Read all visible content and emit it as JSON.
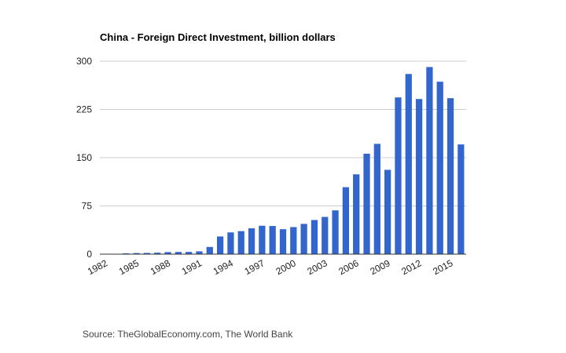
{
  "chart_data": {
    "type": "bar",
    "title": "China - Foreign Direct Investment, billion dollars",
    "xlabel": "",
    "ylabel": "",
    "x": [
      1982,
      1983,
      1984,
      1985,
      1986,
      1987,
      1988,
      1989,
      1990,
      1991,
      1992,
      1993,
      1994,
      1995,
      1996,
      1997,
      1998,
      1999,
      2000,
      2001,
      2002,
      2003,
      2004,
      2005,
      2006,
      2007,
      2008,
      2009,
      2010,
      2011,
      2012,
      2013,
      2014,
      2015,
      2016
    ],
    "values": [
      0.4,
      0.6,
      1.3,
      1.7,
      1.9,
      2.3,
      3.2,
      3.4,
      3.5,
      4.4,
      11.2,
      27.5,
      33.8,
      35.8,
      40.2,
      44.2,
      43.8,
      38.8,
      42.1,
      47.1,
      53.1,
      57.9,
      68.1,
      104.1,
      124.1,
      156.2,
      171.5,
      131.1,
      243.7,
      280.1,
      241.2,
      290.9,
      268.1,
      242.5,
      170.6
    ],
    "x_tick_labels": [
      "1982",
      "1985",
      "1988",
      "1991",
      "1994",
      "1997",
      "2000",
      "2003",
      "2006",
      "2009",
      "2012",
      "2015"
    ],
    "y_tick_labels": [
      "0",
      "75",
      "150",
      "225",
      "300"
    ],
    "ylim": [
      0,
      300
    ],
    "grid": true,
    "bar_color": "#3366cc"
  },
  "source_text": "Source: TheGlobalEconomy.com, The World Bank"
}
